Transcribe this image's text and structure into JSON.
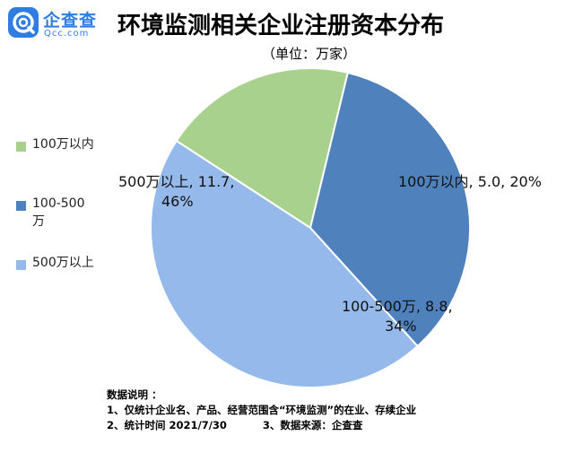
{
  "logo": {
    "name": "企查查",
    "sub": "Qcc.com"
  },
  "title": "环境监测相关企业注册资本分布",
  "subtitle": "（单位：万家）",
  "chart_data": {
    "type": "pie",
    "title": "环境监测相关企业注册资本分布",
    "unit": "万家",
    "slices": [
      {
        "name": "100万以内",
        "value": 5.0,
        "percent": "20%",
        "color": "#a9d18e",
        "label_lines": [
          "100万以内, 5.0, 20%"
        ]
      },
      {
        "name": "100-500万",
        "value": 8.8,
        "percent": "34%",
        "color": "#4f81bd",
        "label_lines": [
          "100-500万, 8.8,",
          "34%"
        ]
      },
      {
        "name": "500万以上",
        "value": 11.7,
        "percent": "46%",
        "color": "#95b9ea",
        "label_lines": [
          "500万以上, 11.7,",
          "46%"
        ]
      }
    ],
    "legend_position": "left"
  },
  "legend": {
    "items": [
      {
        "label": "100万以内",
        "color": "#a9d18e"
      },
      {
        "label": "100-500万",
        "color": "#4f81bd"
      },
      {
        "label": "500万以上",
        "color": "#95b9ea"
      }
    ]
  },
  "notes": {
    "heading": "数据说明 ：",
    "line1": "1、仅统计企业名、产品、经营范围含“环境监测”的在业、存续企业",
    "line2a": "2、统计时间  2021/7/30",
    "line2b": "3、数据来源：企查查"
  }
}
